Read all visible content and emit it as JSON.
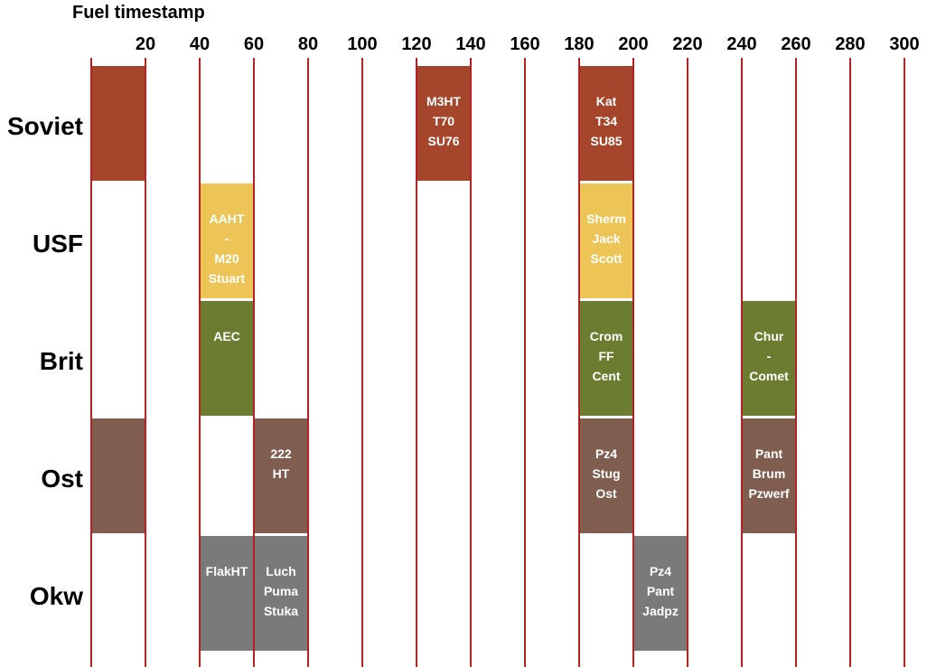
{
  "chart_data": {
    "type": "timeline",
    "title": "Fuel timestamp",
    "x_ticks": [
      20,
      40,
      60,
      80,
      100,
      120,
      140,
      160,
      180,
      200,
      220,
      240,
      260,
      280,
      300
    ],
    "xlim": [
      0,
      300
    ],
    "grid": "vertical",
    "grid_color": "#b22222",
    "rows": [
      {
        "label": "Soviet",
        "color": "#a5452b"
      },
      {
        "label": "USF",
        "color": "#ecc556"
      },
      {
        "label": "Brit",
        "color": "#6c7d31"
      },
      {
        "label": "Ost",
        "color": "#805e4f"
      },
      {
        "label": "Okw",
        "color": "#7a7a7a"
      }
    ],
    "blocks": [
      {
        "row": 0,
        "start": 0,
        "end": 20,
        "lines": []
      },
      {
        "row": 0,
        "start": 120,
        "end": 140,
        "lines": [
          "M3HT",
          "T70",
          "SU76"
        ]
      },
      {
        "row": 0,
        "start": 180,
        "end": 200,
        "lines": [
          "Kat",
          "T34",
          "SU85"
        ]
      },
      {
        "row": 1,
        "start": 40,
        "end": 60,
        "lines": [
          "AAHT",
          "-",
          "M20",
          "Stuart"
        ]
      },
      {
        "row": 1,
        "start": 180,
        "end": 200,
        "lines": [
          "Sherm",
          "Jack",
          "Scott"
        ]
      },
      {
        "row": 2,
        "start": 40,
        "end": 60,
        "lines": [
          "AEC"
        ]
      },
      {
        "row": 2,
        "start": 180,
        "end": 200,
        "lines": [
          "Crom",
          "FF",
          "Cent"
        ]
      },
      {
        "row": 2,
        "start": 240,
        "end": 260,
        "lines": [
          "Chur",
          "-",
          "Comet"
        ]
      },
      {
        "row": 3,
        "start": 0,
        "end": 20,
        "lines": []
      },
      {
        "row": 3,
        "start": 60,
        "end": 80,
        "lines": [
          "222",
          "HT"
        ]
      },
      {
        "row": 3,
        "start": 180,
        "end": 200,
        "lines": [
          "Pz4",
          "Stug",
          "Ost"
        ]
      },
      {
        "row": 3,
        "start": 240,
        "end": 260,
        "lines": [
          "Pant",
          "Brum",
          "Pzwerf"
        ]
      },
      {
        "row": 4,
        "start": 40,
        "end": 60,
        "lines": [
          "FlakHT"
        ]
      },
      {
        "row": 4,
        "start": 60,
        "end": 80,
        "lines": [
          "Luch",
          "Puma",
          "Stuka"
        ]
      },
      {
        "row": 4,
        "start": 200,
        "end": 220,
        "lines": [
          "Pz4",
          "Pant",
          "Jadpz"
        ]
      }
    ]
  }
}
